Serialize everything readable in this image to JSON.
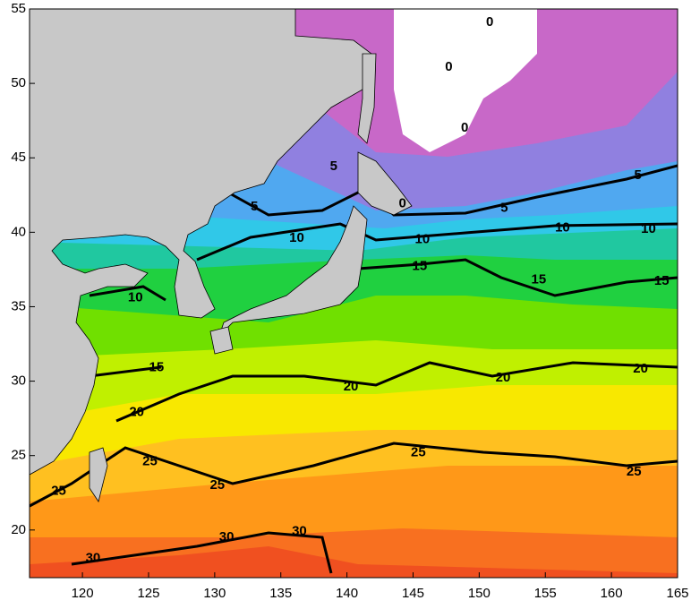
{
  "map": {
    "xlim": [
      116,
      165
    ],
    "ylim": [
      16.8,
      55
    ],
    "xticks": [
      120,
      125,
      130,
      135,
      140,
      145,
      150,
      155,
      160,
      165
    ],
    "yticks": [
      20,
      25,
      30,
      35,
      40,
      45,
      50,
      55
    ],
    "contour_labels": [
      {
        "value": 0,
        "lon": 150.8,
        "lat": 54.1
      },
      {
        "value": 0,
        "lon": 147.7,
        "lat": 51.1
      },
      {
        "value": 0,
        "lon": 148.9,
        "lat": 47.0
      },
      {
        "value": 0,
        "lon": 144.2,
        "lat": 41.9
      },
      {
        "value": 5,
        "lon": 139.0,
        "lat": 44.4
      },
      {
        "value": 5,
        "lon": 133.0,
        "lat": 41.7
      },
      {
        "value": 5,
        "lon": 162.0,
        "lat": 43.8
      },
      {
        "value": 5,
        "lon": 151.9,
        "lat": 41.6
      },
      {
        "value": 10,
        "lon": 136.2,
        "lat": 39.6
      },
      {
        "value": 10,
        "lon": 124.0,
        "lat": 35.6
      },
      {
        "value": 10,
        "lon": 145.7,
        "lat": 39.5
      },
      {
        "value": 10,
        "lon": 156.3,
        "lat": 40.3
      },
      {
        "value": 10,
        "lon": 162.8,
        "lat": 40.2
      },
      {
        "value": 15,
        "lon": 145.5,
        "lat": 37.7
      },
      {
        "value": 15,
        "lon": 154.5,
        "lat": 36.8
      },
      {
        "value": 15,
        "lon": 163.8,
        "lat": 36.7
      },
      {
        "value": 15,
        "lon": 125.6,
        "lat": 30.9
      },
      {
        "value": 20,
        "lon": 124.1,
        "lat": 27.9
      },
      {
        "value": 20,
        "lon": 140.3,
        "lat": 29.6
      },
      {
        "value": 20,
        "lon": 151.8,
        "lat": 30.2
      },
      {
        "value": 20,
        "lon": 162.2,
        "lat": 30.8
      },
      {
        "value": 25,
        "lon": 125.1,
        "lat": 24.6
      },
      {
        "value": 25,
        "lon": 118.2,
        "lat": 22.6
      },
      {
        "value": 25,
        "lon": 130.2,
        "lat": 23.0
      },
      {
        "value": 25,
        "lon": 145.4,
        "lat": 25.2
      },
      {
        "value": 25,
        "lon": 161.7,
        "lat": 23.9
      },
      {
        "value": 30,
        "lon": 120.8,
        "lat": 18.1
      },
      {
        "value": 30,
        "lon": 130.9,
        "lat": 19.5
      },
      {
        "value": 30,
        "lon": 136.4,
        "lat": 19.9
      }
    ]
  }
}
